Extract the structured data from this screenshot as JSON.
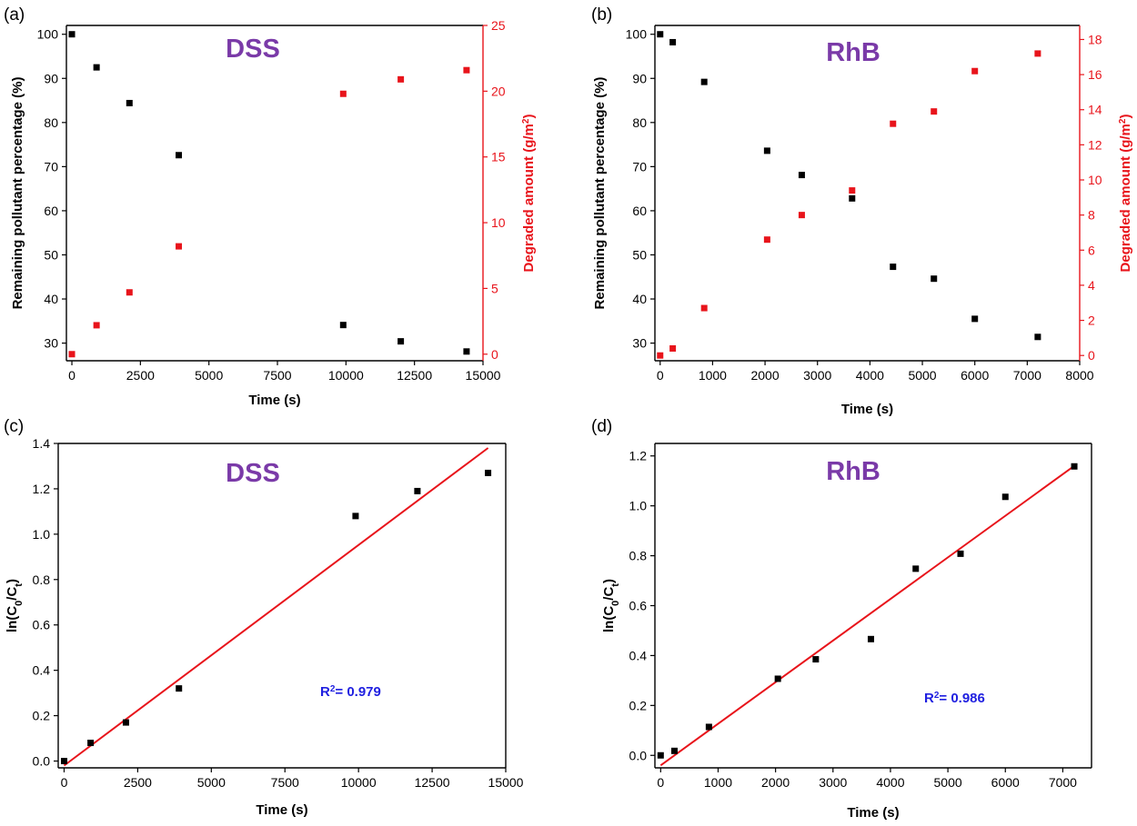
{
  "colors": {
    "black_series": "#000000",
    "red_series": "#e8141b",
    "title": "#7a3aa8",
    "r2": "#1f1fe0"
  },
  "chart_data": [
    {
      "panel": "(a)",
      "type": "scatter",
      "title": "DSS",
      "xlabel": "Time (s)",
      "ylabel": "Remaining pollutant percentage (%)",
      "y2label": "Degraded amount (g/m²)",
      "xlim": [
        -200,
        15000
      ],
      "ylim": [
        26,
        102
      ],
      "y2lim": [
        -0.5,
        25
      ],
      "xticks": [
        0,
        2500,
        5000,
        7500,
        10000,
        12500,
        15000
      ],
      "yticks": [
        30,
        40,
        50,
        60,
        70,
        80,
        90,
        100
      ],
      "y2ticks": [
        0,
        5,
        10,
        15,
        20,
        25
      ],
      "series": [
        {
          "name": "Remaining pollutant percentage (%)",
          "axis": "left",
          "color": "#000000",
          "x": [
            0,
            900,
            2100,
            3900,
            9900,
            12000,
            14400
          ],
          "y": [
            100,
            92.5,
            84.4,
            72.6,
            34.1,
            30.4,
            28.1
          ]
        },
        {
          "name": "Degraded amount (g/m²)",
          "axis": "right",
          "color": "#e8141b",
          "x": [
            0,
            900,
            2100,
            3900,
            9900,
            12000,
            14400
          ],
          "y": [
            0,
            2.2,
            4.7,
            8.2,
            19.8,
            20.9,
            21.6
          ]
        }
      ]
    },
    {
      "panel": "(b)",
      "type": "scatter",
      "title": "RhB",
      "xlabel": "Time (s)",
      "ylabel": "Remaining pollutant percentage (%)",
      "y2label": "Degraded amount (g/m²)",
      "xlim": [
        -100,
        8000
      ],
      "ylim": [
        26,
        102
      ],
      "y2lim": [
        -0.3,
        18.8
      ],
      "xticks": [
        0,
        1000,
        2000,
        3000,
        4000,
        5000,
        6000,
        7000,
        8000
      ],
      "yticks": [
        30,
        40,
        50,
        60,
        70,
        80,
        90,
        100
      ],
      "y2ticks": [
        0,
        2,
        4,
        6,
        8,
        10,
        12,
        14,
        16,
        18
      ],
      "series": [
        {
          "name": "Remaining pollutant percentage (%)",
          "axis": "left",
          "color": "#000000",
          "x": [
            0,
            240,
            840,
            2040,
            2700,
            3660,
            4440,
            5220,
            6000,
            7200
          ],
          "y": [
            100,
            98.2,
            89.2,
            73.6,
            68.1,
            62.8,
            47.3,
            44.6,
            35.5,
            31.4
          ]
        },
        {
          "name": "Degraded amount (g/m²)",
          "axis": "right",
          "color": "#e8141b",
          "x": [
            0,
            240,
            840,
            2040,
            2700,
            3660,
            4440,
            5220,
            6000,
            7200
          ],
          "y": [
            0,
            0.4,
            2.7,
            6.6,
            8.0,
            9.4,
            13.2,
            13.9,
            16.2,
            17.2
          ]
        }
      ]
    },
    {
      "panel": "(c)",
      "type": "scatter",
      "title": "DSS",
      "xlabel": "Time (s)",
      "ylabel": "ln(C0/Ct)",
      "annotation": "R²= 0.979",
      "xlim": [
        -200,
        15000
      ],
      "ylim": [
        -0.03,
        1.4
      ],
      "xticks": [
        0,
        2500,
        5000,
        7500,
        10000,
        12500,
        15000
      ],
      "yticks": [
        0.0,
        0.2,
        0.4,
        0.6,
        0.8,
        1.0,
        1.2,
        1.4
      ],
      "series": [
        {
          "color": "#000000",
          "x": [
            0,
            900,
            2100,
            3900,
            9900,
            12000,
            14400
          ],
          "y": [
            0.0,
            0.08,
            0.17,
            0.32,
            1.08,
            1.19,
            1.27
          ]
        }
      ],
      "fit": {
        "color": "#e8141b",
        "x": [
          0,
          14400
        ],
        "y": [
          -0.02,
          1.38
        ]
      }
    },
    {
      "panel": "(d)",
      "type": "scatter",
      "title": "RhB",
      "xlabel": "Time (s)",
      "ylabel": "ln(C0/Ct)",
      "annotation": "R²= 0.986",
      "xlim": [
        -100,
        7500
      ],
      "ylim": [
        -0.05,
        1.25
      ],
      "xticks": [
        0,
        1000,
        2000,
        3000,
        4000,
        5000,
        6000,
        7000
      ],
      "yticks": [
        0.0,
        0.2,
        0.4,
        0.6,
        0.8,
        1.0,
        1.2
      ],
      "series": [
        {
          "color": "#000000",
          "x": [
            0,
            240,
            840,
            2040,
            2700,
            3660,
            4440,
            5220,
            6000,
            7200
          ],
          "y": [
            0.0,
            0.018,
            0.114,
            0.307,
            0.385,
            0.466,
            0.748,
            0.808,
            1.036,
            1.158
          ]
        }
      ],
      "fit": {
        "color": "#e8141b",
        "x": [
          0,
          7200
        ],
        "y": [
          -0.04,
          1.16
        ]
      }
    }
  ]
}
